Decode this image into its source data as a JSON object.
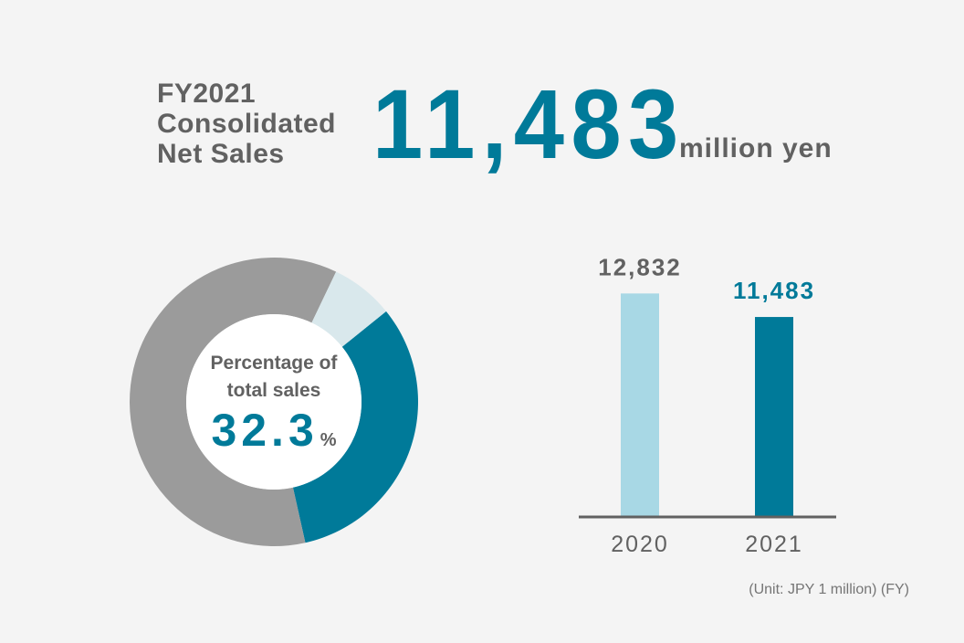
{
  "headline": {
    "label_lines": [
      "FY2021",
      "Consolidated",
      "Net Sales"
    ],
    "value": "11,483",
    "unit": "million yen"
  },
  "donut": {
    "center_label_lines": [
      "Percentage of",
      "total sales"
    ],
    "value": "32.3",
    "unit": "%"
  },
  "footnote": "(Unit: JPY 1 million)  (FY)",
  "colors": {
    "accent": "#007a99",
    "light_bar": "#a8d8e5",
    "donut_gray": "#9b9b9b",
    "donut_light": "#d9e8ec",
    "text_gray": "#616161"
  },
  "chart_data": [
    {
      "type": "pie",
      "style": "donut",
      "values": [
        32.3,
        60.6,
        7.1
      ],
      "highlight_value": 32.3,
      "colors": [
        "#007a99",
        "#9b9b9b",
        "#d9e8ec"
      ]
    },
    {
      "type": "bar",
      "categories": [
        "2020",
        "2021"
      ],
      "values": [
        12832,
        11483
      ],
      "value_labels": [
        "12,832",
        "11,483"
      ],
      "colors": [
        "#a8d8e5",
        "#007a99"
      ],
      "label_colors": [
        "#616161",
        "#007a99"
      ],
      "ylim": [
        0,
        15000
      ]
    }
  ]
}
